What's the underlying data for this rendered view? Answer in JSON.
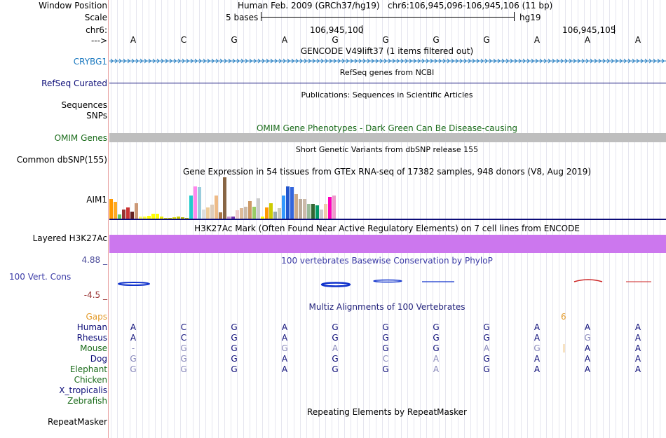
{
  "header": {
    "window_position_label": "Window Position",
    "scale_label": "Scale",
    "chrom_label": "chr6:",
    "strand_label": "--->",
    "assembly_text": "Human Feb. 2009 (GRCh37/hg19)",
    "position_text": "chr6:106,945,096-106,945,106 (11 bp)",
    "scale_text": "5 bases",
    "db_text": "hg19",
    "coord_1": "106,945,100",
    "coord_2": "106,945,105"
  },
  "sequence": [
    "A",
    "C",
    "G",
    "A",
    "G",
    "G",
    "G",
    "G",
    "A",
    "A",
    "A"
  ],
  "tracks": {
    "gencode": {
      "title": "GENCODE V49lift37 (1 items filtered out)",
      "gene": "CRYBG1"
    },
    "refseq": {
      "title": "RefSeq genes from NCBI",
      "label": "RefSeq Curated"
    },
    "publications": {
      "title": "Publications: Sequences in Scientific Articles",
      "label_1": "Sequences",
      "label_2": "SNPs"
    },
    "omim": {
      "title": "OMIM Gene Phenotypes - Dark Green Can Be Disease-causing",
      "label": "OMIM Genes"
    },
    "dbsnp": {
      "title": "Short Genetic Variants from dbSNP release 155",
      "label": "Common dbSNP(155)"
    },
    "gtex": {
      "title": "Gene Expression in 54 tissues from GTEx RNA-seq of 17382 samples, 948 donors (V8, Aug 2019)",
      "gene": "AIM1"
    },
    "h3k27ac": {
      "title": "H3K27Ac Mark (Often Found Near Active Regulatory Elements) on 7 cell lines from ENCODE",
      "label": "Layered H3K27Ac"
    },
    "phylop": {
      "title": "100 vertebrates Basewise Conservation by PhyloP",
      "label": "100 Vert. Cons",
      "max": "4.88 _",
      "min": "-4.5 _"
    },
    "multiz": {
      "title": "Multiz Alignments of 100 Vertebrates",
      "gaps_label": "Gaps",
      "gap_count": "6"
    },
    "repeatmasker": {
      "title": "Repeating Elements by RepeatMasker",
      "label": "RepeatMasker"
    }
  },
  "species": [
    {
      "name": "Human",
      "bases": [
        "A",
        "C",
        "G",
        "A",
        "G",
        "G",
        "G",
        "G",
        "A",
        "A",
        "A"
      ]
    },
    {
      "name": "Rhesus",
      "bases": [
        "A",
        "C",
        "G",
        "A",
        "G",
        "G",
        "G",
        "G",
        "A",
        "G",
        "A"
      ]
    },
    {
      "name": "Mouse",
      "bases": [
        "-",
        "G",
        "G",
        "G",
        "A",
        "G",
        "G",
        "A",
        "G",
        "",
        "A",
        "A"
      ]
    },
    {
      "name": "Dog",
      "bases": [
        "G",
        "G",
        "G",
        "A",
        "G",
        "C",
        "A",
        "G",
        "A",
        "A",
        "A"
      ]
    },
    {
      "name": "Elephant",
      "bases": [
        "G",
        "G",
        "G",
        "A",
        "G",
        "G",
        "A",
        "G",
        "A",
        "A",
        "A"
      ]
    },
    {
      "name": "Chicken",
      "bases": []
    },
    {
      "name": "X_tropicalis",
      "bases": []
    },
    {
      "name": "Zebrafish",
      "bases": []
    }
  ],
  "gtex_values": [
    0.48,
    0.42,
    0.12,
    0.24,
    0.28,
    0.18,
    0.38,
    0.06,
    0.06,
    0.08,
    0.14,
    0.14,
    0.06,
    0.04,
    0.04,
    0.05,
    0.06,
    0.05,
    0.04,
    0.56,
    0.78,
    0.76,
    0.24,
    0.28,
    0.35,
    0.56,
    0.16,
    1.0,
    0.06,
    0.06,
    0.22,
    0.26,
    0.3,
    0.43,
    0.3,
    0.5,
    0.07,
    0.28,
    0.38,
    0.18,
    0.26,
    0.56,
    0.78,
    0.76,
    0.6,
    0.48,
    0.48,
    0.36,
    0.36,
    0.34,
    0.24,
    0.36,
    0.54,
    0.56
  ],
  "gtex_colors": [
    "#ff9900",
    "#ffaa22",
    "#66cc66",
    "#993333",
    "#cc3333",
    "#662222",
    "#cc9977",
    "#ffff66",
    "#ffff33",
    "#ffff00",
    "#ffff00",
    "#ffff00",
    "#eeee00",
    "#dddd00",
    "#cccc00",
    "#dddd00",
    "#cccc00",
    "#bbbb00",
    "#bbbb00",
    "#22cccc",
    "#ff88ee",
    "#99ccdd",
    "#dddddd",
    "#eecc99",
    "#ddccbb",
    "#eebb88",
    "#aa7744",
    "#886644",
    "#cc99cc",
    "#7733aa",
    "#eecccc",
    "#ddbb99",
    "#ccbbaa",
    "#cc9966",
    "#99cc66",
    "#cccccc",
    "#ffff00",
    "#ff9900",
    "#cccc00",
    "#99aaaa",
    "#ccccbb",
    "#3399ff",
    "#2255cc",
    "#3366dd",
    "#ccaa88",
    "#bbaa99",
    "#ccbbaa",
    "#99bb99",
    "#336633",
    "#009966",
    "#cccccc",
    "#eeccaa",
    "#ff00bb",
    "#ee99cc"
  ]
}
